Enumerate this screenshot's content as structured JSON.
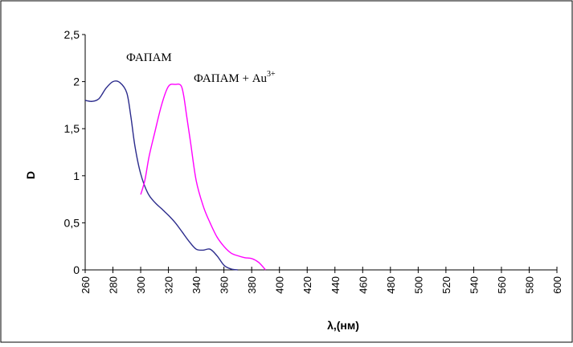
{
  "chart_data": {
    "type": "line",
    "title": "",
    "xlabel": "λ,(нм)",
    "ylabel": "D",
    "xlim": [
      260,
      600
    ],
    "ylim": [
      0,
      2.5
    ],
    "x_ticks": [
      "260",
      "280",
      "300",
      "320",
      "340",
      "360",
      "380",
      "400",
      "420",
      "440",
      "460",
      "480",
      "500",
      "520",
      "540",
      "560",
      "580",
      "600"
    ],
    "y_ticks": [
      "0",
      "0,5",
      "1",
      "1,5",
      "2",
      "2,5"
    ],
    "grid": false,
    "legend": "none",
    "series": [
      {
        "name": "ФАПАМ",
        "color": "#2b2b8c",
        "x": [
          260,
          265,
          270,
          275,
          280,
          285,
          290,
          293,
          296,
          300,
          305,
          310,
          315,
          320,
          325,
          330,
          335,
          340,
          345,
          350,
          355,
          360,
          365,
          370
        ],
        "y": [
          1.8,
          1.79,
          1.82,
          1.93,
          2.0,
          1.99,
          1.88,
          1.62,
          1.3,
          1.02,
          0.82,
          0.72,
          0.65,
          0.58,
          0.5,
          0.4,
          0.3,
          0.22,
          0.21,
          0.22,
          0.15,
          0.05,
          0.01,
          0.0
        ]
      },
      {
        "name": "ФАПАМ + Au³⁺",
        "color": "#ff00ff",
        "x": [
          300,
          303,
          306,
          310,
          315,
          320,
          325,
          329,
          331,
          333,
          336,
          340,
          345,
          350,
          355,
          360,
          365,
          370,
          375,
          380,
          385,
          390
        ],
        "y": [
          0.8,
          0.95,
          1.2,
          1.45,
          1.75,
          1.95,
          1.97,
          1.96,
          1.85,
          1.65,
          1.35,
          0.95,
          0.68,
          0.5,
          0.35,
          0.25,
          0.18,
          0.15,
          0.13,
          0.12,
          0.08,
          0.0
        ]
      }
    ],
    "labels": {
      "s1": "ФАПАМ",
      "s2_main": "ФАПАМ + Au",
      "s2_sup": "3+"
    }
  }
}
